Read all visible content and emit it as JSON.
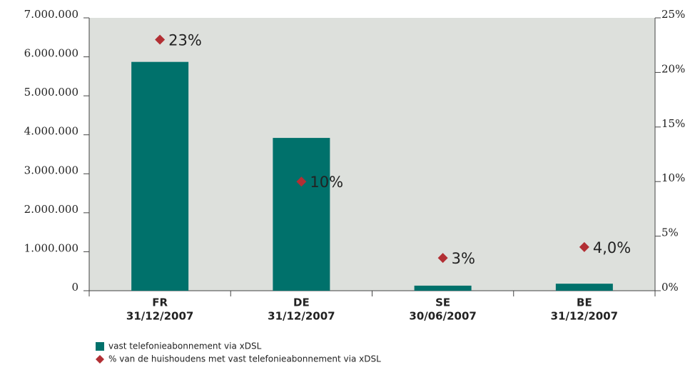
{
  "chart_data": {
    "type": "bar",
    "categories": [
      "FR",
      "DE",
      "SE",
      "BE"
    ],
    "category_dates": [
      "31/12/2007",
      "31/12/2007",
      "30/06/2007",
      "31/12/2007"
    ],
    "series": [
      {
        "name": "vast telefonieabonnement via xDSL",
        "color": "#00716b",
        "values": [
          5870000,
          3920000,
          130000,
          180000
        ]
      },
      {
        "name": "% van de huishoudens met vast telefonieabonnement via xDSL",
        "color": "#b22f34",
        "axis": "y2",
        "type": "scatter",
        "values": [
          23,
          10,
          3,
          4.0
        ],
        "value_labels": [
          "23%",
          "10%",
          "3%",
          "4,0%"
        ]
      }
    ],
    "ylim": [
      0,
      7000000
    ],
    "yticks": [
      0,
      {
        "value": 1000000,
        "label": "1.000.000"
      },
      {
        "value": 2000000,
        "label": "2.000.000"
      },
      {
        "value": 3000000,
        "label": "3.000.000"
      },
      {
        "value": 4000000,
        "label": "4.000.000"
      },
      {
        "value": 5000000,
        "label": "5.000.000"
      },
      {
        "value": 6000000,
        "label": "6.000.000"
      },
      {
        "value": 7000000,
        "label": "7.000.000"
      }
    ],
    "y2lim": [
      0,
      25
    ],
    "y2ticks": [
      {
        "value": 0,
        "label": "0%"
      },
      {
        "value": 5,
        "label": "5%"
      },
      {
        "value": 10,
        "label": "10%"
      },
      {
        "value": 15,
        "label": "15%"
      },
      {
        "value": 20,
        "label": "20%"
      },
      {
        "value": 25,
        "label": "25%"
      }
    ],
    "plot_background": "#dde0dc"
  }
}
